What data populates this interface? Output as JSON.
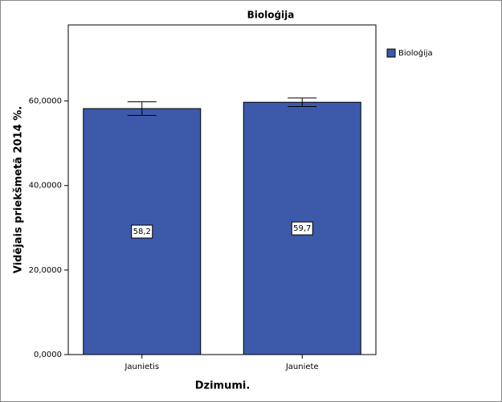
{
  "chart_data": {
    "type": "bar",
    "title": "Bioloģija",
    "x_label": "Dzimumi.",
    "y_label": "Vidējais priekšmetā 2014 %.",
    "categories": [
      "Jaunietis",
      "Jauniete"
    ],
    "series": [
      {
        "name": "Bioloģija",
        "color": "#3d5aaa",
        "values": [
          58.2,
          59.7
        ],
        "value_labels": [
          "58,2",
          "59,7"
        ],
        "errors": [
          1.6,
          1.0
        ]
      }
    ],
    "ylim": [
      0,
      78
    ],
    "yticks": [
      {
        "value": 0,
        "label": "0,0000"
      },
      {
        "value": 20,
        "label": "20,0000"
      },
      {
        "value": 40,
        "label": "40,0000"
      },
      {
        "value": 60,
        "label": "60,0000"
      }
    ],
    "legend": "right"
  }
}
